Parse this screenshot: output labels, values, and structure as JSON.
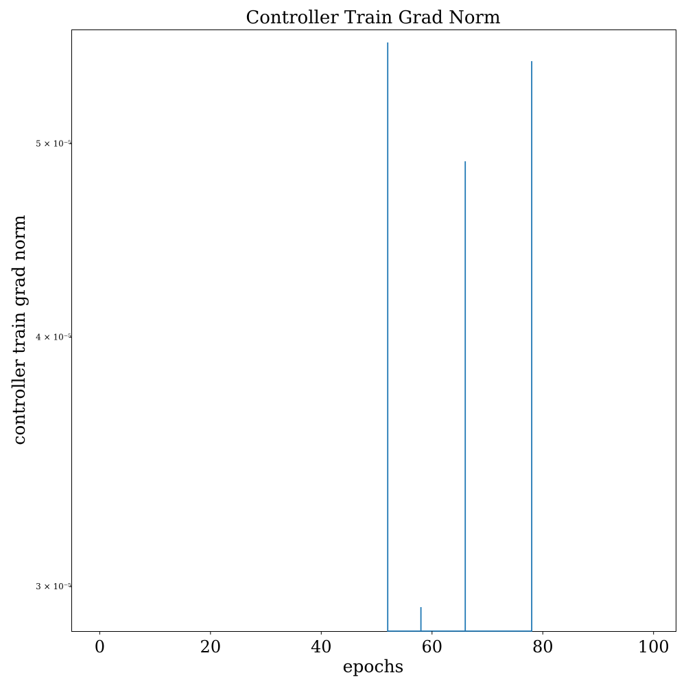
{
  "chart_data": {
    "type": "line",
    "title": "Controller Train Grad Norm",
    "xlabel": "epochs",
    "ylabel": "controller train grad norm",
    "xlim": [
      -5,
      104
    ],
    "ylim": [
      2.85e-05,
      5.7e-05
    ],
    "yscale": "log",
    "grid": false,
    "legend": "none",
    "xticks": [
      0,
      20,
      40,
      60,
      80,
      100
    ],
    "xtick_labels": [
      "0",
      "20",
      "40",
      "60",
      "80",
      "100"
    ],
    "yticks": [
      3e-05,
      4e-05,
      5e-05
    ],
    "ytick_labels": [
      "3 × 10⁻⁵",
      "4 × 10⁻⁵",
      "5 × 10⁻⁵"
    ],
    "series": [
      {
        "color": "#1f77b4",
        "x": [
          52,
          52,
          52,
          58,
          58,
          58,
          66,
          66,
          66,
          78,
          78,
          78
        ],
        "y": [
          2.85e-05,
          5.62e-05,
          2.85e-05,
          2.85e-05,
          2.93e-05,
          2.85e-05,
          2.85e-05,
          4.9e-05,
          2.85e-05,
          2.85e-05,
          5.5e-05,
          2.85e-05
        ]
      }
    ]
  }
}
